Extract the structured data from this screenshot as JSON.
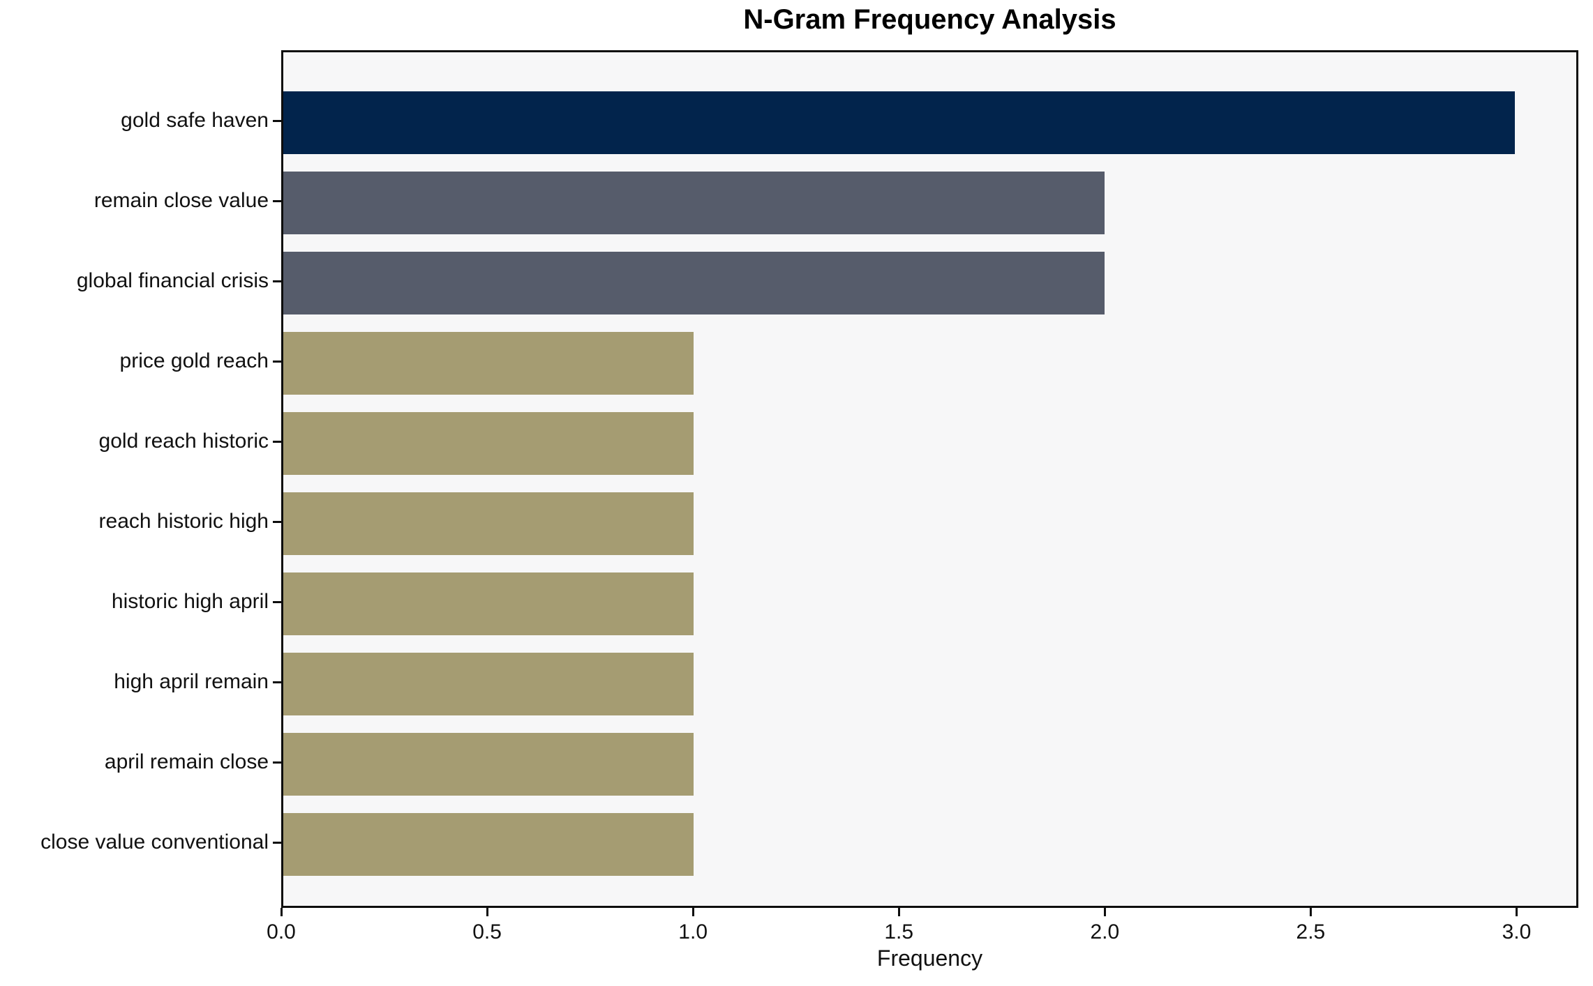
{
  "chart_data": {
    "type": "bar",
    "orientation": "horizontal",
    "title": "N-Gram Frequency Analysis",
    "xlabel": "Frequency",
    "xlim": [
      0,
      3.15
    ],
    "xticks": [
      0,
      0.5,
      1,
      1.5,
      2,
      2.5,
      3
    ],
    "xtick_labels": [
      "0.0",
      "0.5",
      "1.0",
      "1.5",
      "2.0",
      "2.5",
      "3.0"
    ],
    "grid": false,
    "legend": false,
    "figure_background": "#ffffff",
    "plot_background": "#f7f7f8",
    "spine_color": "#0d0d0d",
    "categories": [
      "gold safe haven",
      "remain close value",
      "global financial crisis",
      "price gold reach",
      "gold reach historic",
      "reach historic high",
      "historic high april",
      "high april remain",
      "april remain close",
      "close value conventional"
    ],
    "values": [
      3,
      2,
      2,
      1,
      1,
      1,
      1,
      1,
      1,
      1
    ],
    "bar_colors": [
      "#02244c",
      "#565c6b",
      "#565c6b",
      "#a59c72",
      "#a59c72",
      "#a59c72",
      "#a59c72",
      "#a59c72",
      "#a59c72",
      "#a59c72"
    ]
  }
}
